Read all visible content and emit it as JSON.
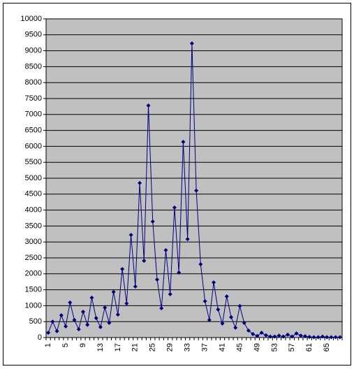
{
  "chart_data": {
    "type": "line",
    "categories": [
      1,
      null,
      null,
      null,
      5,
      null,
      null,
      null,
      9,
      null,
      null,
      null,
      13,
      null,
      null,
      null,
      17,
      null,
      null,
      null,
      21,
      null,
      null,
      null,
      25,
      null,
      null,
      null,
      29,
      null,
      null,
      null,
      33,
      null,
      null,
      null,
      37,
      null,
      null,
      null,
      41,
      null,
      null,
      null,
      45,
      null,
      null,
      null,
      49,
      null,
      null,
      null,
      53,
      null,
      null,
      null,
      57,
      null,
      null,
      null,
      61,
      null,
      null,
      null,
      65,
      null,
      null,
      null
    ],
    "series": [
      {
        "color": "#000080",
        "values": [
          150,
          500,
          200,
          700,
          350,
          1100,
          550,
          260,
          810,
          400,
          1250,
          610,
          330,
          940,
          460,
          1430,
          720,
          2150,
          1070,
          3220,
          1600,
          4850,
          2410,
          7280,
          3640,
          1820,
          920,
          2740,
          1360,
          4080,
          2040,
          6140,
          3090,
          9230,
          4610,
          2300,
          1140,
          550,
          1730,
          880,
          440,
          1290,
          640,
          310,
          990,
          460,
          220,
          110,
          50,
          150,
          70,
          30,
          30,
          60,
          30,
          90,
          30,
          130,
          60,
          40,
          20,
          10,
          10,
          30,
          10,
          10,
          10,
          10
        ]
      }
    ],
    "ylim": [
      0,
      10000
    ],
    "yticks": [
      0,
      500,
      1000,
      1500,
      2000,
      2500,
      3000,
      3500,
      4000,
      4500,
      5000,
      5500,
      6000,
      6500,
      7000,
      7500,
      8000,
      8500,
      9000,
      9500,
      10000
    ],
    "grid": true,
    "plot_background": "#c0c0c0"
  }
}
